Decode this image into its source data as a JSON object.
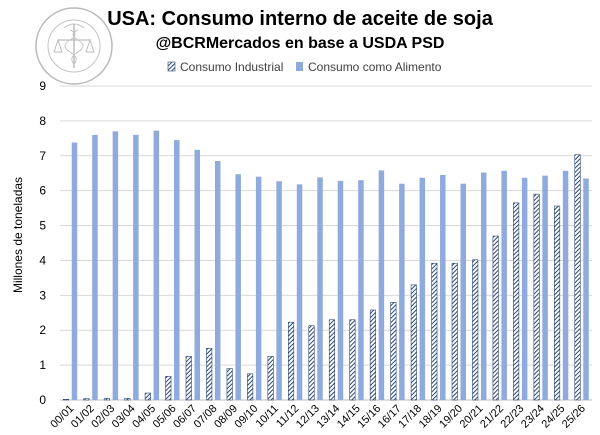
{
  "chart_data": {
    "type": "bar",
    "title": "USA: Consumo interno de aceite de soja",
    "subtitle": "@BCRMercados en base a USDA PSD",
    "xlabel": "",
    "ylabel": "Millones de toneladas",
    "ylim": [
      0,
      9
    ],
    "yticks": [
      0,
      1,
      2,
      3,
      4,
      5,
      6,
      7,
      8,
      9
    ],
    "grid": true,
    "legend": "top-center",
    "categories": [
      "00/01",
      "01/02",
      "02/03",
      "03/04",
      "04/05",
      "05/06",
      "06/07",
      "07/08",
      "08/09",
      "09/10",
      "10/11",
      "11/12",
      "12/13",
      "13/14",
      "14/15",
      "15/16",
      "16/17",
      "17/18",
      "18/19",
      "19/20",
      "20/21",
      "21/22",
      "22/23",
      "23/24",
      "24/25",
      "25/26"
    ],
    "series": [
      {
        "name": "Consumo Industrial",
        "color": "#3d5a8a",
        "pattern": "hatched",
        "values": [
          0.02,
          0.04,
          0.05,
          0.05,
          0.2,
          0.68,
          1.25,
          1.48,
          0.9,
          0.75,
          1.25,
          2.23,
          2.13,
          2.3,
          2.3,
          2.58,
          2.8,
          3.3,
          3.92,
          3.92,
          4.02,
          4.7,
          5.65,
          5.9,
          5.56,
          7.03
        ]
      },
      {
        "name": "Consumo como Alimento",
        "color": "#8faadc",
        "pattern": "solid",
        "values": [
          7.38,
          7.6,
          7.7,
          7.6,
          7.72,
          7.45,
          7.17,
          6.85,
          6.47,
          6.4,
          6.27,
          6.18,
          6.38,
          6.28,
          6.3,
          6.58,
          6.2,
          6.37,
          6.45,
          6.2,
          6.52,
          6.57,
          6.37,
          6.43,
          6.57,
          6.35
        ]
      }
    ]
  },
  "logo": {
    "ring_text": "BOLSA DE COMERCIO DE ROSARIO",
    "icon": "caduceus-scales-seal-icon"
  }
}
